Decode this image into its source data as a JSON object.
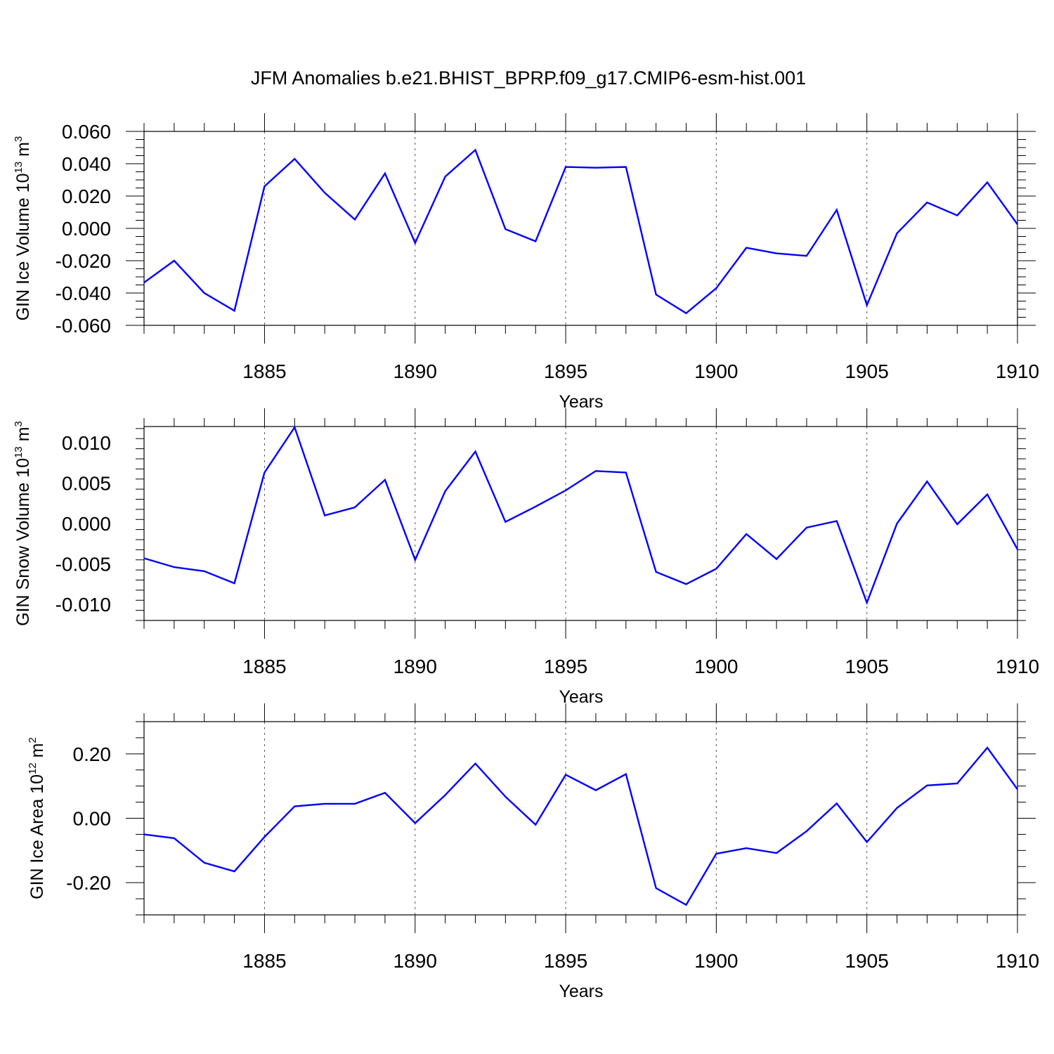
{
  "title": "JFM Anomalies b.e21.BHIST_BPRP.f09_g17.CMIP6-esm-hist.001",
  "chart_data": [
    {
      "type": "line",
      "ylabel": {
        "base": "GIN Ice Volume 10",
        "exp": "13",
        "unit": " m",
        "unit_exp": "3"
      },
      "xlabel": "Years",
      "xlim": [
        1881,
        1910
      ],
      "ylim": [
        -0.06,
        0.06
      ],
      "yticks": [
        -0.06,
        -0.04,
        -0.02,
        0.0,
        0.02,
        0.04,
        0.06
      ],
      "ytick_labels": [
        "-0.060",
        "-0.040",
        "-0.020",
        "0.000",
        "0.020",
        "0.040",
        "0.060"
      ],
      "xticks": [
        1885,
        1890,
        1895,
        1900,
        1905,
        1910
      ],
      "xtick_labels": [
        "1885",
        "1890",
        "1895",
        "1900",
        "1905",
        "1910"
      ],
      "grid": "dashed vertical lines at labeled years",
      "series": [
        {
          "color": "#0000ff",
          "x": [
            1881,
            1882,
            1883,
            1884,
            1885,
            1886,
            1887,
            1888,
            1889,
            1890,
            1891,
            1892,
            1893,
            1894,
            1895,
            1896,
            1897,
            1898,
            1899,
            1900,
            1901,
            1902,
            1903,
            1904,
            1905,
            1906,
            1907,
            1908,
            1909,
            1910
          ],
          "y": [
            -0.0335,
            -0.02,
            -0.04,
            -0.051,
            0.026,
            0.043,
            0.022,
            0.0055,
            0.034,
            -0.009,
            0.032,
            0.0485,
            -0.0005,
            -0.008,
            0.038,
            0.0375,
            0.038,
            -0.041,
            -0.0525,
            -0.037,
            -0.012,
            -0.0155,
            -0.017,
            0.0115,
            -0.0475,
            -0.003,
            0.016,
            0.008,
            0.0285,
            0.0025
          ]
        }
      ]
    },
    {
      "type": "line",
      "ylabel": {
        "base": "GIN Snow Volume 10",
        "exp": "13",
        "unit": " m",
        "unit_exp": "3"
      },
      "xlabel": "Years",
      "xlim": [
        1881,
        1910
      ],
      "ylim": [
        -0.012,
        0.012
      ],
      "yticks": [
        -0.01,
        -0.005,
        0.0,
        0.005,
        0.01
      ],
      "ytick_labels": [
        "-0.010",
        "-0.005",
        "0.000",
        "0.005",
        "0.010"
      ],
      "xticks": [
        1885,
        1890,
        1895,
        1900,
        1905,
        1910
      ],
      "xtick_labels": [
        "1885",
        "1890",
        "1895",
        "1900",
        "1905",
        "1910"
      ],
      "grid": "dashed vertical lines at labeled years",
      "series": [
        {
          "color": "#0000ff",
          "x": [
            1881,
            1882,
            1883,
            1884,
            1885,
            1886,
            1887,
            1888,
            1889,
            1890,
            1891,
            1892,
            1893,
            1894,
            1895,
            1896,
            1897,
            1898,
            1899,
            1900,
            1901,
            1902,
            1903,
            1904,
            1905,
            1906,
            1907,
            1908,
            1909,
            1910
          ],
          "y": [
            -0.0043,
            -0.0054,
            -0.0059,
            -0.0074,
            0.0063,
            0.0119,
            0.001,
            0.002,
            0.0054,
            -0.0045,
            0.004,
            0.0089,
            0.0002,
            0.0021,
            0.0041,
            0.0065,
            0.0063,
            -0.006,
            -0.0075,
            -0.0056,
            -0.0013,
            -0.0044,
            -0.0005,
            0.0003,
            -0.0098,
            0.0,
            0.0052,
            -0.0001,
            0.0036,
            -0.0032
          ]
        }
      ]
    },
    {
      "type": "line",
      "ylabel": {
        "base": "GIN Ice Area 10",
        "exp": "12",
        "unit": " m",
        "unit_exp": "2"
      },
      "xlabel": "Years",
      "xlim": [
        1881,
        1910
      ],
      "ylim": [
        -0.3,
        0.3
      ],
      "yticks": [
        -0.2,
        0.0,
        0.2
      ],
      "ytick_labels": [
        "-0.20",
        "0.00",
        "0.20"
      ],
      "xticks": [
        1885,
        1890,
        1895,
        1900,
        1905,
        1910
      ],
      "xtick_labels": [
        "1885",
        "1890",
        "1895",
        "1900",
        "1905",
        "1910"
      ],
      "grid": "dashed vertical lines at labeled years",
      "series": [
        {
          "color": "#0000ff",
          "x": [
            1881,
            1882,
            1883,
            1884,
            1885,
            1886,
            1887,
            1888,
            1889,
            1890,
            1891,
            1892,
            1893,
            1894,
            1895,
            1896,
            1897,
            1898,
            1899,
            1900,
            1901,
            1902,
            1903,
            1904,
            1905,
            1906,
            1907,
            1908,
            1909,
            1910
          ],
          "y": [
            -0.05,
            -0.062,
            -0.138,
            -0.165,
            -0.058,
            0.037,
            0.045,
            0.045,
            0.079,
            -0.015,
            0.072,
            0.17,
            0.067,
            -0.02,
            0.135,
            0.087,
            0.137,
            -0.217,
            -0.269,
            -0.11,
            -0.093,
            -0.108,
            -0.04,
            0.046,
            -0.074,
            0.032,
            0.102,
            0.108,
            0.219,
            0.09
          ]
        }
      ]
    }
  ]
}
